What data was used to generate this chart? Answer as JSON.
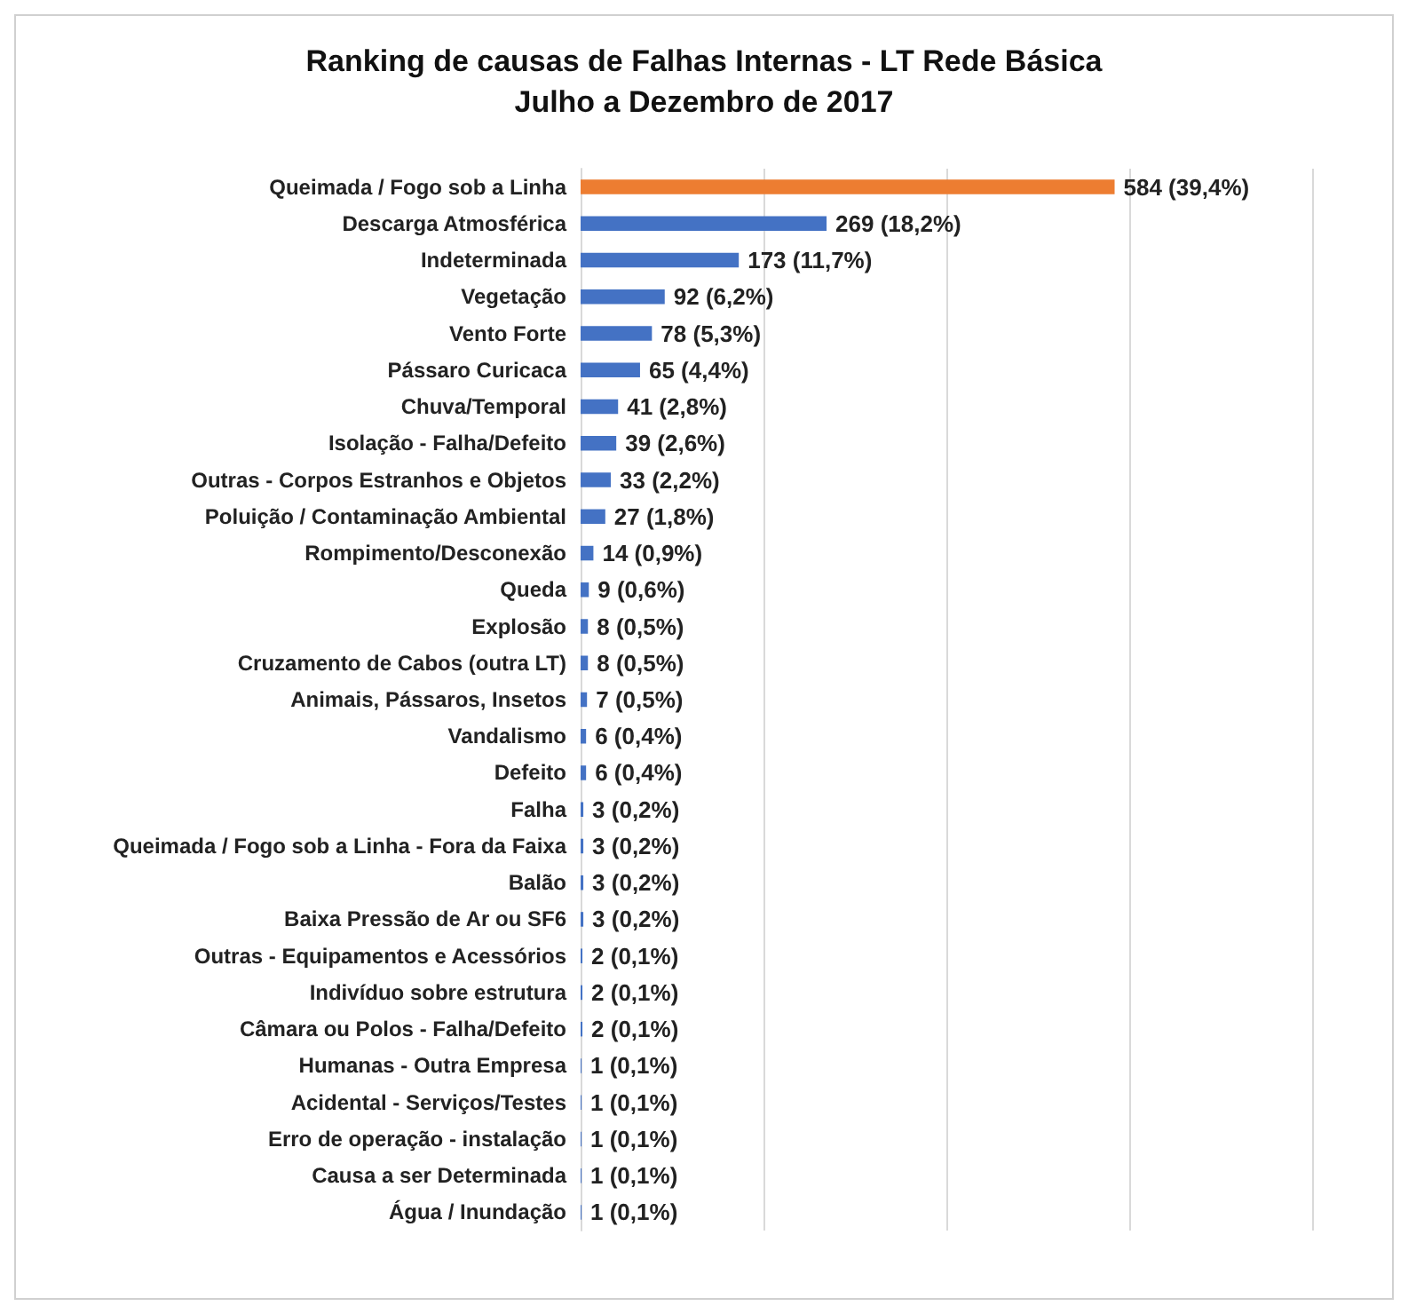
{
  "chart_data": {
    "type": "bar",
    "orientation": "horizontal",
    "title": "Ranking de causas de Falhas Internas - LT Rede Básica",
    "subtitle": "Julho a Dezembro de 2017",
    "categories": [
      "Queimada / Fogo sob a Linha",
      "Descarga Atmosférica",
      "Indeterminada",
      "Vegetação",
      "Vento Forte",
      "Pássaro Curicaca",
      "Chuva/Temporal",
      "Isolação - Falha/Defeito",
      "Outras - Corpos Estranhos e Objetos",
      "Poluição / Contaminação Ambiental",
      "Rompimento/Desconexão",
      "Queda",
      "Explosão",
      "Cruzamento de Cabos (outra LT)",
      "Animais, Pássaros, Insetos",
      "Vandalismo",
      "Defeito",
      "Falha",
      "Queimada / Fogo sob a Linha - Fora da Faixa",
      "Balão",
      "Baixa Pressão de Ar ou SF6",
      "Outras - Equipamentos e Acessórios",
      "Indivíduo sobre estrutura",
      "Câmara ou Polos - Falha/Defeito",
      "Humanas - Outra Empresa",
      "Acidental - Serviços/Testes",
      "Erro de operação - instalação",
      "Causa a ser Determinada",
      "Água / Inundação"
    ],
    "values": [
      584,
      269,
      173,
      92,
      78,
      65,
      41,
      39,
      33,
      27,
      14,
      9,
      8,
      8,
      7,
      6,
      6,
      3,
      3,
      3,
      3,
      2,
      2,
      2,
      1,
      1,
      1,
      1,
      1
    ],
    "value_labels": [
      "584 (39,4%)",
      "269 (18,2%)",
      "173 (11,7%)",
      "92 (6,2%)",
      "78 (5,3%)",
      "65 (4,4%)",
      "41 (2,8%)",
      "39 (2,6%)",
      "33 (2,2%)",
      "27 (1,8%)",
      "14 (0,9%)",
      "9 (0,6%)",
      "8 (0,5%)",
      "8 (0,5%)",
      "7 (0,5%)",
      "6 (0,4%)",
      "6 (0,4%)",
      "3 (0,2%)",
      "3 (0,2%)",
      "3 (0,2%)",
      "3 (0,2%)",
      "2 (0,1%)",
      "2 (0,1%)",
      "2 (0,1%)",
      "1 (0,1%)",
      "1 (0,1%)",
      "1 (0,1%)",
      "1 (0,1%)",
      "1 (0,1%)"
    ],
    "colors": [
      "#ed7d31",
      "#4472c4",
      "#4472c4",
      "#4472c4",
      "#4472c4",
      "#4472c4",
      "#4472c4",
      "#4472c4",
      "#4472c4",
      "#4472c4",
      "#4472c4",
      "#4472c4",
      "#4472c4",
      "#4472c4",
      "#4472c4",
      "#4472c4",
      "#4472c4",
      "#4472c4",
      "#4472c4",
      "#4472c4",
      "#4472c4",
      "#4472c4",
      "#4472c4",
      "#4472c4",
      "#4472c4",
      "#4472c4",
      "#4472c4",
      "#4472c4",
      "#4472c4"
    ],
    "xlim": [
      0,
      800
    ],
    "xticks": [
      {
        "value": 0,
        "label": null
      },
      {
        "value": 200,
        "label": null
      },
      {
        "value": 400,
        "label": null
      },
      {
        "value": 600,
        "label": null
      },
      {
        "value": 800,
        "label": null
      }
    ],
    "grid": "x",
    "tick_labels": "y"
  }
}
